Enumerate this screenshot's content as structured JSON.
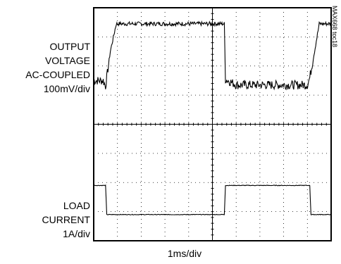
{
  "figure_id": "MAX668 toc18",
  "top_trace_label": [
    "OUTPUT",
    "VOLTAGE",
    "AC-COUPLED",
    "100mV/div"
  ],
  "bottom_trace_label": [
    "LOAD",
    "CURRENT",
    "1A/div"
  ],
  "chart_data": {
    "type": "line",
    "title": "",
    "xlabel": "1ms/div",
    "x_unit": "div",
    "grid": true,
    "xlim": [
      0,
      10
    ],
    "series": [
      {
        "name": "OUTPUT VOLTAGE AC-COUPLED 100mV/div",
        "y_unit": "div",
        "ylim": [
          -4,
          4
        ],
        "points": [
          [
            0.0,
            1.5
          ],
          [
            0.4,
            1.5
          ],
          [
            0.5,
            1.3
          ],
          [
            0.7,
            2.5
          ],
          [
            0.95,
            3.45
          ],
          [
            3.0,
            3.45
          ],
          [
            5.5,
            3.45
          ],
          [
            5.55,
            1.55
          ],
          [
            6.0,
            1.35
          ],
          [
            7.0,
            1.35
          ],
          [
            8.5,
            1.35
          ],
          [
            9.0,
            1.35
          ],
          [
            9.1,
            1.6
          ],
          [
            9.3,
            2.5
          ],
          [
            9.5,
            3.45
          ],
          [
            10.0,
            3.45
          ]
        ]
      },
      {
        "name": "LOAD CURRENT 1A/div",
        "y_unit": "div",
        "ylim": [
          -4,
          4
        ],
        "points": [
          [
            0.0,
            -2.1
          ],
          [
            0.5,
            -2.1
          ],
          [
            0.55,
            -3.1
          ],
          [
            5.5,
            -3.1
          ],
          [
            5.55,
            -2.1
          ],
          [
            9.1,
            -2.1
          ],
          [
            9.15,
            -3.1
          ],
          [
            10.0,
            -3.1
          ]
        ]
      }
    ]
  }
}
